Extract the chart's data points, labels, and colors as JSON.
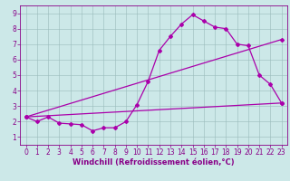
{
  "xlabel": "Windchill (Refroidissement éolien,°C)",
  "bg_color": "#cce8e8",
  "line_color": "#aa00aa",
  "xlim": [
    -0.5,
    23.5
  ],
  "ylim": [
    0.5,
    9.5
  ],
  "xticks": [
    0,
    1,
    2,
    3,
    4,
    5,
    6,
    7,
    8,
    9,
    10,
    11,
    12,
    13,
    14,
    15,
    16,
    17,
    18,
    19,
    20,
    21,
    22,
    23
  ],
  "yticks": [
    1,
    2,
    3,
    4,
    5,
    6,
    7,
    8,
    9
  ],
  "curve1_x": [
    0,
    1,
    2,
    3,
    4,
    5,
    6,
    7,
    8,
    9,
    10,
    11,
    12,
    13,
    14,
    15,
    16,
    17,
    18,
    19,
    20,
    21,
    22,
    23
  ],
  "curve1_y": [
    2.3,
    2.0,
    2.3,
    1.9,
    1.85,
    1.8,
    1.4,
    1.6,
    1.6,
    2.0,
    3.1,
    4.6,
    6.6,
    7.5,
    8.3,
    8.9,
    8.5,
    8.1,
    8.0,
    7.0,
    6.9,
    5.0,
    4.4,
    3.2
  ],
  "curve2_x": [
    0,
    23
  ],
  "curve2_y": [
    2.3,
    7.3
  ],
  "curve3_x": [
    0,
    23
  ],
  "curve3_y": [
    2.3,
    3.2
  ],
  "grid_color": "#99bbbb",
  "marker": "D",
  "markersize": 2,
  "linewidth": 0.9,
  "xlabel_fontsize": 6,
  "tick_fontsize": 5.5,
  "tick_color": "#880088",
  "spine_color": "#880088"
}
